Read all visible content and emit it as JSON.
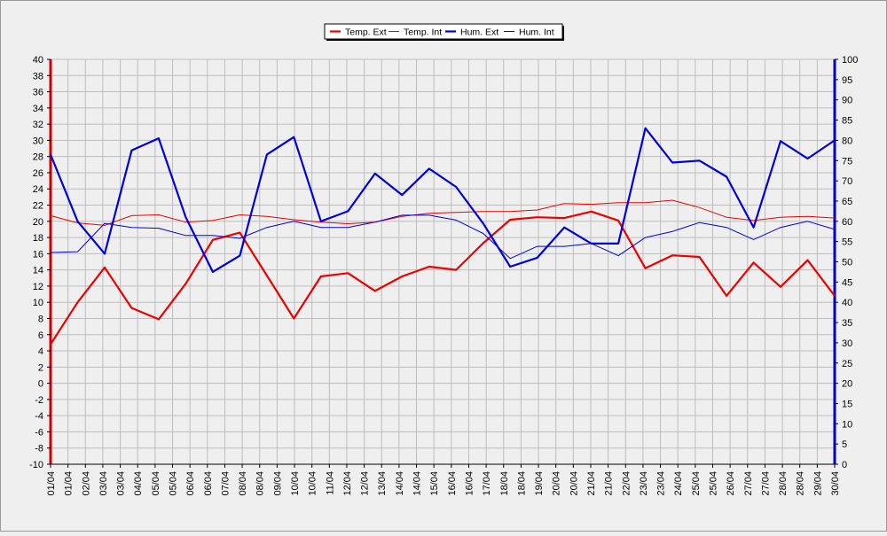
{
  "chart_data": {
    "type": "line",
    "x": [
      "01/04",
      "01/04",
      "02/04",
      "03/04",
      "03/04",
      "04/04",
      "05/04",
      "05/04",
      "06/04",
      "06/04",
      "07/04",
      "08/04",
      "08/04",
      "09/04",
      "10/04",
      "10/04",
      "11/04",
      "12/04",
      "12/04",
      "13/04",
      "14/04",
      "14/04",
      "15/04",
      "16/04",
      "16/04",
      "17/04",
      "18/04",
      "18/04",
      "19/04",
      "20/04",
      "20/04",
      "21/04",
      "21/04",
      "22/04",
      "23/04",
      "23/04",
      "24/04",
      "25/04",
      "25/04",
      "26/04",
      "27/04",
      "27/04",
      "28/04",
      "28/04",
      "29/04",
      "30/04"
    ],
    "left_axis": {
      "ylim": [
        -10,
        40
      ],
      "ticks": [
        -10,
        -8,
        -6,
        -4,
        -2,
        0,
        2,
        4,
        6,
        8,
        10,
        12,
        14,
        16,
        18,
        20,
        22,
        24,
        26,
        28,
        30,
        32,
        34,
        36,
        38,
        40
      ],
      "color": "#cc0000"
    },
    "right_axis": {
      "ylim": [
        0,
        100
      ],
      "ticks": [
        0,
        5,
        10,
        15,
        20,
        25,
        30,
        35,
        40,
        45,
        50,
        55,
        60,
        65,
        70,
        75,
        80,
        85,
        90,
        95,
        100
      ],
      "color": "#0000cc"
    },
    "grid": true,
    "legend": "top-center",
    "series": [
      {
        "name": "Temp. Ext",
        "axis": "left",
        "color": "#ee0000",
        "width": 2.2,
        "points": [
          [
            0,
            4.8
          ],
          [
            1,
            10.0
          ],
          [
            2,
            14.3
          ],
          [
            3,
            9.3
          ],
          [
            4,
            7.9
          ],
          [
            5,
            12.3
          ],
          [
            6,
            17.7
          ],
          [
            7,
            18.6
          ],
          [
            8,
            13.3
          ],
          [
            9,
            8.0
          ],
          [
            10,
            13.2
          ],
          [
            11,
            13.6
          ],
          [
            12,
            11.4
          ],
          [
            13,
            13.2
          ],
          [
            14,
            14.4
          ],
          [
            15,
            14.0
          ],
          [
            16,
            17.3
          ],
          [
            17,
            20.2
          ],
          [
            18,
            20.5
          ],
          [
            19,
            20.4
          ],
          [
            20,
            21.2
          ],
          [
            21,
            20.1
          ],
          [
            22,
            14.2
          ],
          [
            23,
            15.8
          ],
          [
            24,
            15.6
          ],
          [
            25,
            10.8
          ],
          [
            26,
            14.9
          ],
          [
            27,
            11.9
          ],
          [
            28,
            15.2
          ],
          [
            29,
            10.8
          ]
        ]
      },
      {
        "name": "Temp. Int",
        "axis": "left",
        "color": "#ee0000",
        "width": 1,
        "points": [
          [
            0,
            20.7
          ],
          [
            1,
            19.8
          ],
          [
            2,
            19.5
          ],
          [
            3,
            20.7
          ],
          [
            4,
            20.8
          ],
          [
            5,
            19.9
          ],
          [
            6,
            20.1
          ],
          [
            7,
            20.8
          ],
          [
            8,
            20.6
          ],
          [
            9,
            20.2
          ],
          [
            10,
            19.9
          ],
          [
            11,
            19.7
          ],
          [
            12,
            19.9
          ],
          [
            13,
            20.6
          ],
          [
            14,
            21.0
          ],
          [
            15,
            21.1
          ],
          [
            16,
            21.2
          ],
          [
            17,
            21.2
          ],
          [
            18,
            21.4
          ],
          [
            19,
            22.2
          ],
          [
            20,
            22.1
          ],
          [
            21,
            22.3
          ],
          [
            22,
            22.3
          ],
          [
            23,
            22.6
          ],
          [
            24,
            21.7
          ],
          [
            25,
            20.5
          ],
          [
            26,
            20.1
          ],
          [
            27,
            20.5
          ],
          [
            28,
            20.6
          ],
          [
            29,
            20.4
          ]
        ]
      },
      {
        "name": "Hum. Ext",
        "axis": "right",
        "color": "#0000dd",
        "width": 2.2,
        "points": [
          [
            0,
            76.5
          ],
          [
            1,
            60.0
          ],
          [
            2,
            52.0
          ],
          [
            3,
            77.5
          ],
          [
            4,
            80.5
          ],
          [
            5,
            61.0
          ],
          [
            6,
            47.5
          ],
          [
            7,
            51.5
          ],
          [
            8,
            76.5
          ],
          [
            9,
            80.8
          ],
          [
            10,
            60.0
          ],
          [
            11,
            62.5
          ],
          [
            12,
            71.8
          ],
          [
            13,
            66.5
          ],
          [
            14,
            73.0
          ],
          [
            15,
            68.5
          ],
          [
            16,
            59.5
          ],
          [
            17,
            48.8
          ],
          [
            18,
            51.0
          ],
          [
            19,
            58.5
          ],
          [
            20,
            54.5
          ],
          [
            21,
            54.5
          ],
          [
            22,
            83.0
          ],
          [
            23,
            74.5
          ],
          [
            24,
            75.0
          ],
          [
            25,
            71.0
          ],
          [
            26,
            58.5
          ],
          [
            27,
            79.8
          ],
          [
            28,
            75.5
          ],
          [
            29,
            80.0
          ]
        ]
      },
      {
        "name": "Hum. Int",
        "axis": "right",
        "color": "#0000dd",
        "width": 1,
        "points": [
          [
            0,
            52.3
          ],
          [
            1,
            52.5
          ],
          [
            2,
            59.5
          ],
          [
            3,
            58.5
          ],
          [
            4,
            58.3
          ],
          [
            5,
            56.5
          ],
          [
            6,
            56.5
          ],
          [
            7,
            55.8
          ],
          [
            8,
            58.5
          ],
          [
            9,
            60.0
          ],
          [
            10,
            58.5
          ],
          [
            11,
            58.5
          ],
          [
            12,
            59.8
          ],
          [
            13,
            61.5
          ],
          [
            14,
            61.5
          ],
          [
            15,
            60.3
          ],
          [
            16,
            57.0
          ],
          [
            17,
            50.8
          ],
          [
            18,
            53.8
          ],
          [
            19,
            53.8
          ],
          [
            20,
            54.5
          ],
          [
            21,
            51.5
          ],
          [
            22,
            56.0
          ],
          [
            23,
            57.5
          ],
          [
            24,
            59.7
          ],
          [
            25,
            58.5
          ],
          [
            26,
            55.5
          ],
          [
            27,
            58.5
          ],
          [
            28,
            60.0
          ],
          [
            29,
            58.0
          ]
        ]
      }
    ]
  }
}
